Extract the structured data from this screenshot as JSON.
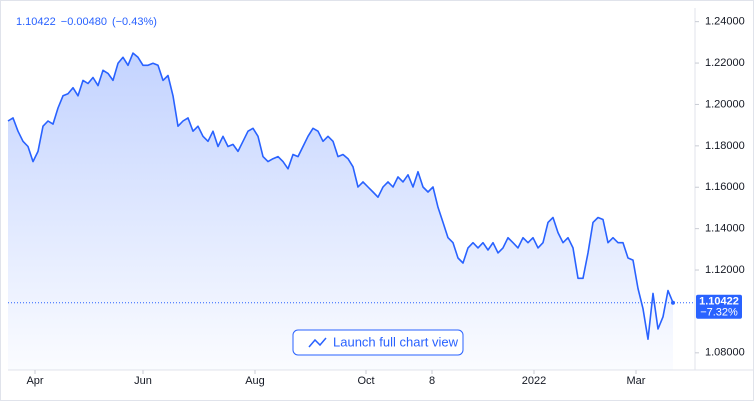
{
  "header": {
    "price": "1.10422",
    "change": "−0.00480",
    "change_pct": "(−0.43%)"
  },
  "chart_data": {
    "type": "area-line",
    "color": "#2962ff",
    "values": [
      1.192,
      1.1935,
      1.1871,
      1.1822,
      1.1797,
      1.1724,
      1.1773,
      1.1895,
      1.192,
      1.1905,
      1.1983,
      1.2042,
      1.2052,
      1.2081,
      1.2042,
      1.2116,
      1.2101,
      1.213,
      1.2091,
      1.2165,
      1.215,
      1.2116,
      1.2199,
      1.2228,
      1.2189,
      1.2248,
      1.2228,
      1.2189,
      1.2189,
      1.2199,
      1.2189,
      1.2116,
      1.214,
      1.2042,
      1.1895,
      1.192,
      1.1935,
      1.1871,
      1.1895,
      1.1846,
      1.1822,
      1.1871,
      1.1797,
      1.1846,
      1.1797,
      1.1807,
      1.1773,
      1.1822,
      1.1871,
      1.1885,
      1.1846,
      1.1748,
      1.1724,
      1.1738,
      1.1748,
      1.1724,
      1.1689,
      1.1758,
      1.1748,
      1.1797,
      1.1846,
      1.1885,
      1.1871,
      1.1822,
      1.1846,
      1.1822,
      1.1748,
      1.1758,
      1.1738,
      1.1699,
      1.1601,
      1.1626,
      1.1601,
      1.1577,
      1.1552,
      1.1601,
      1.1626,
      1.1601,
      1.165,
      1.1626,
      1.166,
      1.1601,
      1.1675,
      1.1601,
      1.1577,
      1.1601,
      1.1503,
      1.143,
      1.1356,
      1.1332,
      1.1258,
      1.1234,
      1.1307,
      1.1332,
      1.1307,
      1.1332,
      1.1297,
      1.1332,
      1.1283,
      1.1307,
      1.1356,
      1.1332,
      1.1307,
      1.1356,
      1.1332,
      1.1356,
      1.1307,
      1.1332,
      1.143,
      1.1454,
      1.1381,
      1.1332,
      1.1356,
      1.1307,
      1.116,
      1.116,
      1.1283,
      1.143,
      1.1454,
      1.1444,
      1.1332,
      1.1356,
      1.1332,
      1.1332,
      1.1258,
      1.1248,
      1.1111,
      1.1013,
      1.0866,
      1.1087,
      1.0915,
      1.0974,
      1.1101,
      1.10422
    ],
    "last_label": "1.10422",
    "last_change_label": "−7.32%",
    "xlim": [
      0,
      137.4
    ],
    "xticks": [
      {
        "value": 5.4,
        "label": "Apr"
      },
      {
        "value": 27,
        "label": "Jun"
      },
      {
        "value": 49.4,
        "label": "Aug"
      },
      {
        "value": 71.6,
        "label": "Oct"
      },
      {
        "value": 84.8,
        "label": "8"
      },
      {
        "value": 105.2,
        "label": "2022"
      },
      {
        "value": 125.6,
        "label": "Mar"
      }
    ],
    "ylim": [
      1.0717,
      1.2466
    ],
    "yticks": [
      {
        "value": 1.08,
        "label": "1.08000"
      },
      {
        "value": 1.12,
        "label": "1.12000"
      },
      {
        "value": 1.14,
        "label": "1.14000"
      },
      {
        "value": 1.16,
        "label": "1.16000"
      },
      {
        "value": 1.18,
        "label": "1.18000"
      },
      {
        "value": 1.2,
        "label": "1.20000"
      },
      {
        "value": 1.22,
        "label": "1.22000"
      },
      {
        "value": 1.24,
        "label": "1.24000"
      }
    ],
    "button": "Launch full chart view"
  }
}
